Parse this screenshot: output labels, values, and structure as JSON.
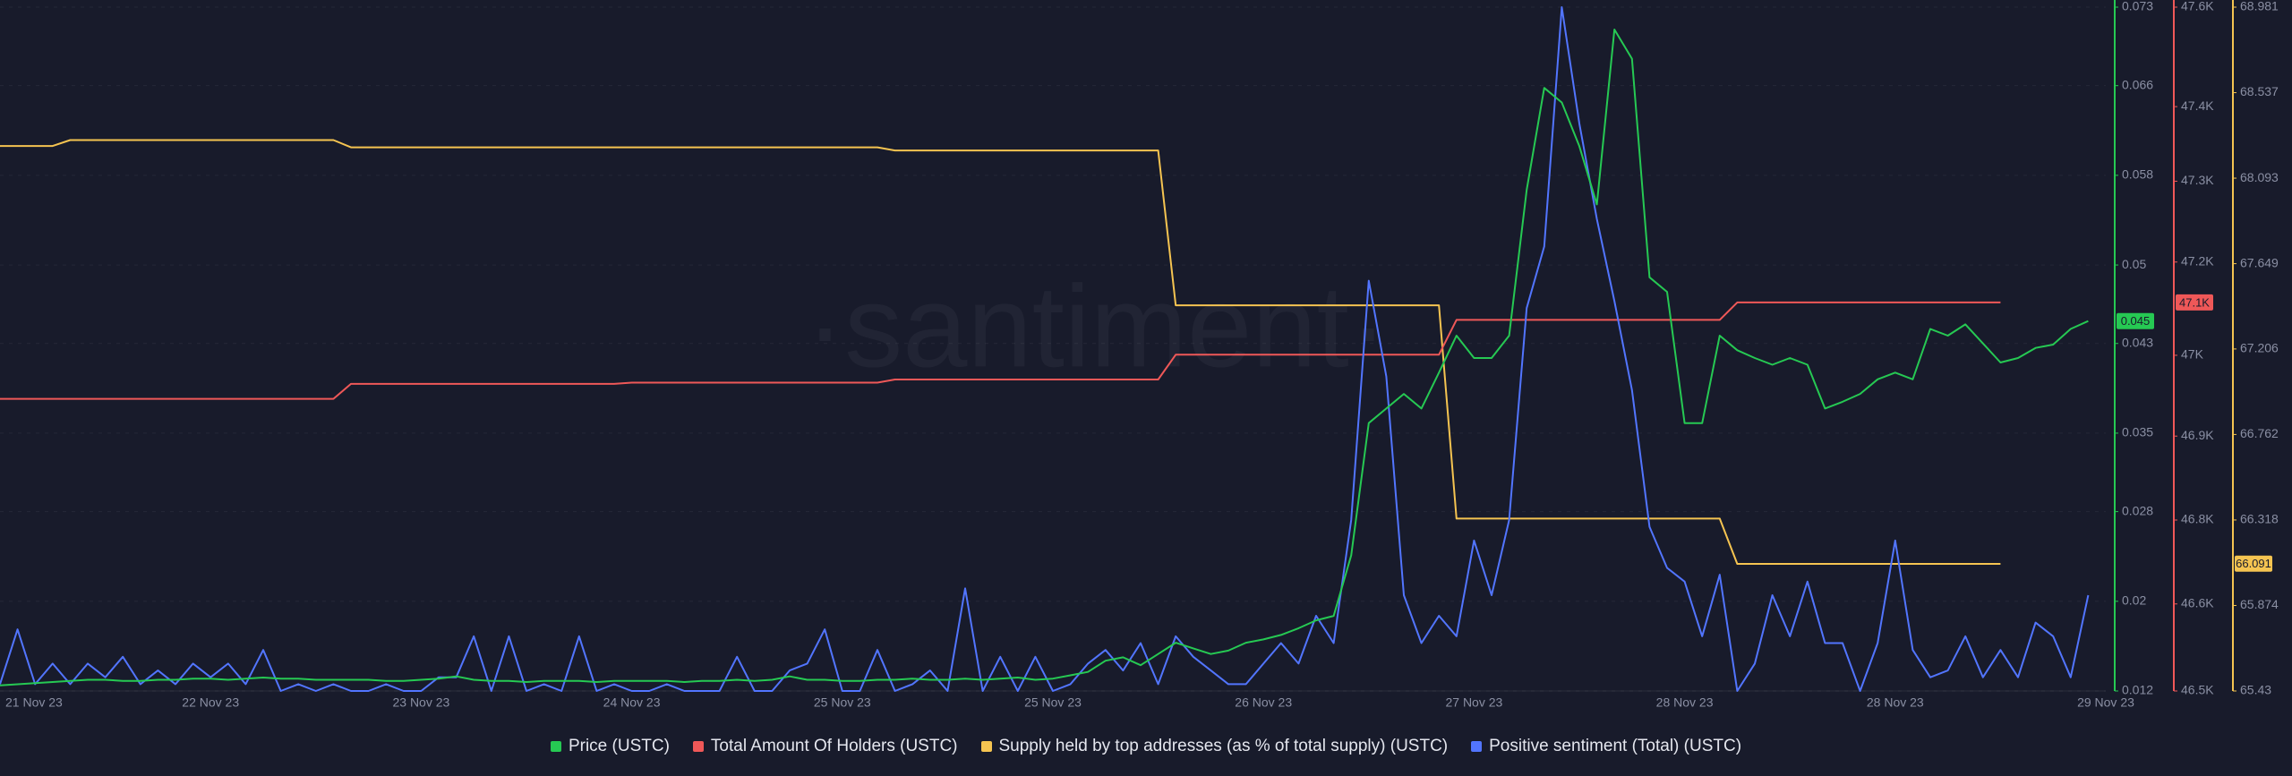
{
  "chart_data": {
    "type": "line",
    "watermark": "·santiment·",
    "grid": true,
    "categories": [
      null,
      null,
      "21 Nov 23",
      null,
      null,
      null,
      null,
      null,
      null,
      null,
      null,
      null,
      "22 Nov 23",
      null,
      null,
      null,
      null,
      null,
      null,
      null,
      null,
      null,
      null,
      null,
      "23 Nov 23",
      null,
      null,
      null,
      null,
      null,
      null,
      null,
      null,
      null,
      null,
      null,
      "24 Nov 23",
      null,
      null,
      null,
      null,
      null,
      null,
      null,
      null,
      null,
      null,
      null,
      "25 Nov 23",
      null,
      null,
      null,
      null,
      null,
      null,
      null,
      null,
      null,
      null,
      null,
      "25 Nov 23",
      null,
      null,
      null,
      null,
      null,
      null,
      null,
      null,
      null,
      null,
      null,
      "26 Nov 23",
      null,
      null,
      null,
      null,
      null,
      null,
      null,
      null,
      null,
      null,
      null,
      "27 Nov 23",
      null,
      null,
      null,
      null,
      null,
      null,
      null,
      null,
      null,
      null,
      null,
      "28 Nov 23",
      null,
      null,
      null,
      null,
      null,
      null,
      null,
      null,
      null,
      null,
      null,
      "28 Nov 23",
      null,
      null,
      null,
      null,
      null,
      null,
      null,
      null,
      null,
      null,
      null,
      "29 Nov 23"
    ],
    "ylim": [
      0.012,
      0.073
    ],
    "yticks": [
      0.012,
      0.02,
      0.028,
      0.035,
      0.043,
      0.05,
      0.058,
      0.066,
      0.073
    ],
    "y2lim": [
      46500,
      47600
    ],
    "y2ticks": [
      {
        "value": 46500,
        "label": "46.5K"
      },
      {
        "value": 46640,
        "label": "46.6K"
      },
      {
        "value": 46775,
        "label": "46.8K"
      },
      {
        "value": 46910,
        "label": "46.9K"
      },
      {
        "value": 47040,
        "label": "47K"
      },
      {
        "value": 47190,
        "label": "47.2K"
      },
      {
        "value": 47320,
        "label": "47.3K"
      },
      {
        "value": 47440,
        "label": "47.4K"
      },
      {
        "value": 47600,
        "label": "47.6K"
      }
    ],
    "y3lim": [
      65.43,
      68.981
    ],
    "y3ticks": [
      65.43,
      65.874,
      66.318,
      66.762,
      67.206,
      67.649,
      68.093,
      68.537,
      68.981
    ],
    "series": [
      {
        "name": "Price (USTC)",
        "color": "#26c953",
        "axis": "y",
        "badge": 0.045,
        "values": [
          0.0125,
          0.0126,
          0.0127,
          0.0128,
          0.0129,
          0.013,
          0.013,
          0.0129,
          0.0129,
          0.013,
          0.013,
          0.0131,
          0.0131,
          0.013,
          0.0131,
          0.0132,
          0.0131,
          0.0131,
          0.013,
          0.013,
          0.013,
          0.013,
          0.0129,
          0.0129,
          0.013,
          0.0131,
          0.0133,
          0.013,
          0.0129,
          0.0129,
          0.0128,
          0.0129,
          0.0129,
          0.0129,
          0.0128,
          0.0129,
          0.0129,
          0.0129,
          0.0129,
          0.0128,
          0.0129,
          0.0129,
          0.013,
          0.0129,
          0.013,
          0.0133,
          0.013,
          0.013,
          0.0129,
          0.0129,
          0.013,
          0.013,
          0.0131,
          0.013,
          0.013,
          0.0131,
          0.013,
          0.0131,
          0.0132,
          0.013,
          0.0131,
          0.0134,
          0.0137,
          0.0147,
          0.015,
          0.0143,
          0.0153,
          0.0163,
          0.0158,
          0.0153,
          0.0156,
          0.0163,
          0.0166,
          0.017,
          0.0176,
          0.0183,
          0.0187,
          0.0241,
          0.0359,
          0.0372,
          0.0385,
          0.0372,
          0.0404,
          0.0437,
          0.0417,
          0.0417,
          0.0437,
          0.0567,
          0.0658,
          0.0645,
          0.0606,
          0.0554,
          0.071,
          0.0684,
          0.0489,
          0.0476,
          0.0359,
          0.0359,
          0.0437,
          0.0424,
          0.0417,
          0.0411,
          0.0417,
          0.0411,
          0.0372,
          0.0378,
          0.0385,
          0.0398,
          0.0404,
          0.0398,
          0.0443,
          0.0437,
          0.0447,
          0.043,
          0.0413,
          0.0417,
          0.0426,
          0.0429,
          0.0443,
          0.045,
          null
        ]
      },
      {
        "name": "Total Amount Of Holders (USTC)",
        "color": "#ef5858",
        "axis": "y2",
        "badge": {
          "value": 47125,
          "label": "47.1K"
        },
        "values": [
          46970,
          46970,
          46970,
          46970,
          46970,
          46970,
          46970,
          46970,
          46970,
          46970,
          46970,
          46970,
          46970,
          46970,
          46970,
          46970,
          46970,
          46970,
          46970,
          46970,
          46994,
          46994,
          46994,
          46994,
          46994,
          46994,
          46994,
          46994,
          46994,
          46994,
          46994,
          46994,
          46994,
          46994,
          46994,
          46994,
          46996,
          46996,
          46996,
          46996,
          46996,
          46996,
          46996,
          46996,
          46996,
          46996,
          46996,
          46996,
          46996,
          46996,
          46996,
          47001,
          47001,
          47001,
          47001,
          47001,
          47001,
          47001,
          47001,
          47001,
          47001,
          47001,
          47001,
          47001,
          47001,
          47001,
          47001,
          47041,
          47041,
          47041,
          47041,
          47041,
          47041,
          47041,
          47041,
          47041,
          47041,
          47041,
          47041,
          47041,
          47041,
          47041,
          47041,
          47097,
          47097,
          47097,
          47097,
          47097,
          47097,
          47097,
          47097,
          47097,
          47097,
          47097,
          47097,
          47097,
          47097,
          47097,
          47097,
          47125,
          47125,
          47125,
          47125,
          47125,
          47125,
          47125,
          47125,
          47125,
          47125,
          47125,
          47125,
          47125,
          47125,
          47125,
          47125,
          null,
          null,
          null,
          null,
          null,
          null
        ]
      },
      {
        "name": "Supply held by top addresses (as % of total supply) (USTC)",
        "color": "#f5c451",
        "axis": "y3",
        "badge": 66.091,
        "values": [
          68.26,
          68.26,
          68.26,
          68.26,
          68.291,
          68.291,
          68.291,
          68.291,
          68.291,
          68.291,
          68.291,
          68.291,
          68.291,
          68.291,
          68.291,
          68.291,
          68.291,
          68.291,
          68.291,
          68.291,
          68.253,
          68.253,
          68.253,
          68.253,
          68.253,
          68.253,
          68.253,
          68.253,
          68.253,
          68.253,
          68.253,
          68.253,
          68.253,
          68.253,
          68.253,
          68.253,
          68.253,
          68.253,
          68.253,
          68.253,
          68.253,
          68.253,
          68.253,
          68.253,
          68.253,
          68.253,
          68.253,
          68.253,
          68.253,
          68.253,
          68.253,
          68.237,
          68.237,
          68.237,
          68.237,
          68.237,
          68.237,
          68.237,
          68.237,
          68.237,
          68.237,
          68.237,
          68.237,
          68.237,
          68.237,
          68.237,
          68.237,
          67.433,
          67.433,
          67.433,
          67.433,
          67.433,
          67.433,
          67.433,
          67.433,
          67.433,
          67.433,
          67.433,
          67.433,
          67.433,
          67.433,
          67.433,
          67.433,
          66.325,
          66.325,
          66.325,
          66.325,
          66.325,
          66.325,
          66.325,
          66.325,
          66.325,
          66.325,
          66.325,
          66.325,
          66.325,
          66.325,
          66.325,
          66.325,
          66.09,
          66.09,
          66.09,
          66.09,
          66.09,
          66.09,
          66.09,
          66.09,
          66.09,
          66.09,
          66.09,
          66.09,
          66.09,
          66.09,
          66.09,
          66.09,
          null,
          null,
          null,
          null,
          null,
          null
        ]
      },
      {
        "name": "Positive sentiment (Total) (USTC)",
        "color": "#5275ff",
        "axis": "y4",
        "values": [
          1,
          9,
          1,
          4,
          1,
          4,
          2,
          5,
          1,
          3,
          1,
          4,
          2,
          4,
          1,
          6,
          0,
          1,
          0,
          1,
          0,
          0,
          1,
          0,
          0,
          2,
          2,
          8,
          0,
          8,
          0,
          1,
          0,
          8,
          0,
          1,
          0,
          0,
          1,
          0,
          0,
          0,
          5,
          0,
          0,
          3,
          4,
          9,
          0,
          0,
          6,
          0,
          1,
          3,
          0,
          15,
          0,
          5,
          0,
          5,
          0,
          1,
          4,
          6,
          3,
          7,
          1,
          8,
          5,
          3,
          1,
          1,
          4,
          7,
          4,
          11,
          7,
          25,
          60,
          46,
          14,
          7,
          11,
          8,
          22,
          14,
          25,
          56,
          65,
          100,
          83,
          69,
          57,
          44,
          24,
          18,
          16,
          8,
          17,
          0,
          4,
          14,
          8,
          16,
          7,
          7,
          0,
          7,
          22,
          6,
          2,
          3,
          8,
          2,
          6,
          2,
          10,
          8,
          2,
          14,
          null
        ]
      }
    ]
  }
}
